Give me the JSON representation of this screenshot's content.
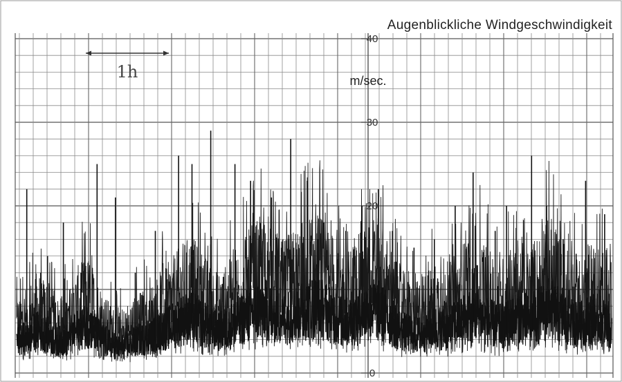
{
  "chart_data": {
    "type": "line",
    "title": "Augenblickliche Windgeschwindigkeit",
    "ylabel": "m/sec.",
    "ylim": [
      0,
      40
    ],
    "y_ticks": [
      "0",
      "10",
      "20",
      "30",
      "40"
    ],
    "y_ticks_labeled": [
      "0",
      "20",
      "30",
      "40"
    ],
    "grid": true,
    "time_scale_label": "1h",
    "time_scale_hours": 1,
    "duration_hours": 7.1,
    "series": [
      {
        "values": [
          7.5,
          8.5,
          10.0,
          9.0,
          7.5,
          8.0,
          10.5,
          11.5,
          9.0,
          7.0,
          6.0,
          7.0,
          8.0,
          8.5,
          10.0,
          11.0,
          12.5,
          13.5,
          12.0,
          10.5,
          10.0,
          11.5,
          13.0,
          14.5,
          15.5,
          14.0,
          13.0,
          14.0,
          15.0,
          16.0,
          15.0,
          13.5,
          12.0,
          13.0,
          14.5,
          15.5,
          13.5,
          11.0,
          9.5,
          9.0,
          10.0,
          11.0,
          10.5,
          12.0,
          13.5,
          14.0,
          12.0,
          11.0,
          12.0,
          13.5,
          12.5,
          14.0,
          15.5,
          13.5,
          12.0,
          11.5,
          13.0,
          12.5,
          11.0
        ],
        "peaks": [
          22,
          14,
          18,
          12,
          25,
          21,
          12,
          17,
          26,
          25,
          29,
          25,
          23,
          21,
          28,
          23,
          16,
          17,
          20,
          22,
          17,
          15,
          16,
          20,
          24,
          17,
          20,
          26,
          20,
          16,
          23,
          19
        ]
      }
    ]
  }
}
